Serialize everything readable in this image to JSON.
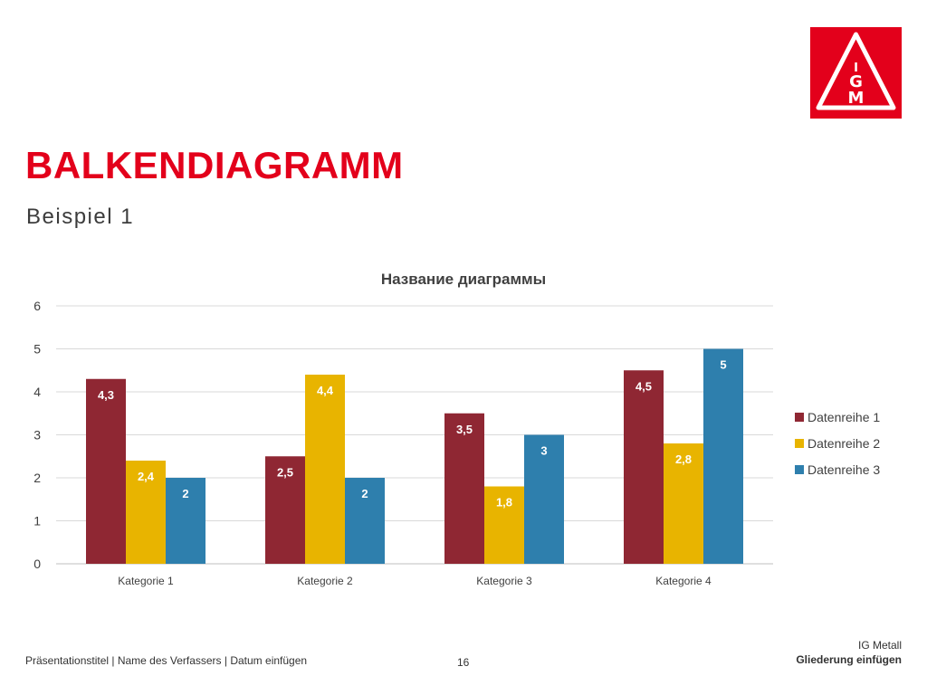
{
  "slide": {
    "title": "BALKENDIAGRAMM",
    "subtitle": "Beispiel 1",
    "page_number": "16"
  },
  "logo": {
    "name": "ig-metall-logo",
    "background": "#e3001b",
    "text": "IGM"
  },
  "footer": {
    "left": "Präsentationstitel | Name des Verfassers | Datum einfügen",
    "organization": "IG Metall",
    "section": "Gliederung einfügen"
  },
  "colors": {
    "accent": "#e3001b",
    "series": [
      "#8f2733",
      "#e8b400",
      "#2e7fad"
    ]
  },
  "chart_data": {
    "type": "bar",
    "title": "Название диаграммы",
    "categories": [
      "Kategorie 1",
      "Kategorie 2",
      "Kategorie 3",
      "Kategorie 4"
    ],
    "series": [
      {
        "name": "Datenreihe 1",
        "values": [
          4.3,
          2.5,
          3.5,
          4.5
        ],
        "labels": [
          "4,3",
          "2,5",
          "3,5",
          "4,5"
        ],
        "color": "#8f2733"
      },
      {
        "name": "Datenreihe 2",
        "values": [
          2.4,
          4.4,
          1.8,
          2.8
        ],
        "labels": [
          "2,4",
          "4,4",
          "1,8",
          "2,8"
        ],
        "color": "#e8b400"
      },
      {
        "name": "Datenreihe 3",
        "values": [
          2,
          2,
          3,
          5
        ],
        "labels": [
          "2",
          "2",
          "3",
          "5"
        ],
        "color": "#2e7fad"
      }
    ],
    "y_ticks": [
      "0",
      "1",
      "2",
      "3",
      "4",
      "5",
      "6"
    ],
    "ylim": [
      0,
      6
    ],
    "grid": true,
    "legend": "right"
  }
}
